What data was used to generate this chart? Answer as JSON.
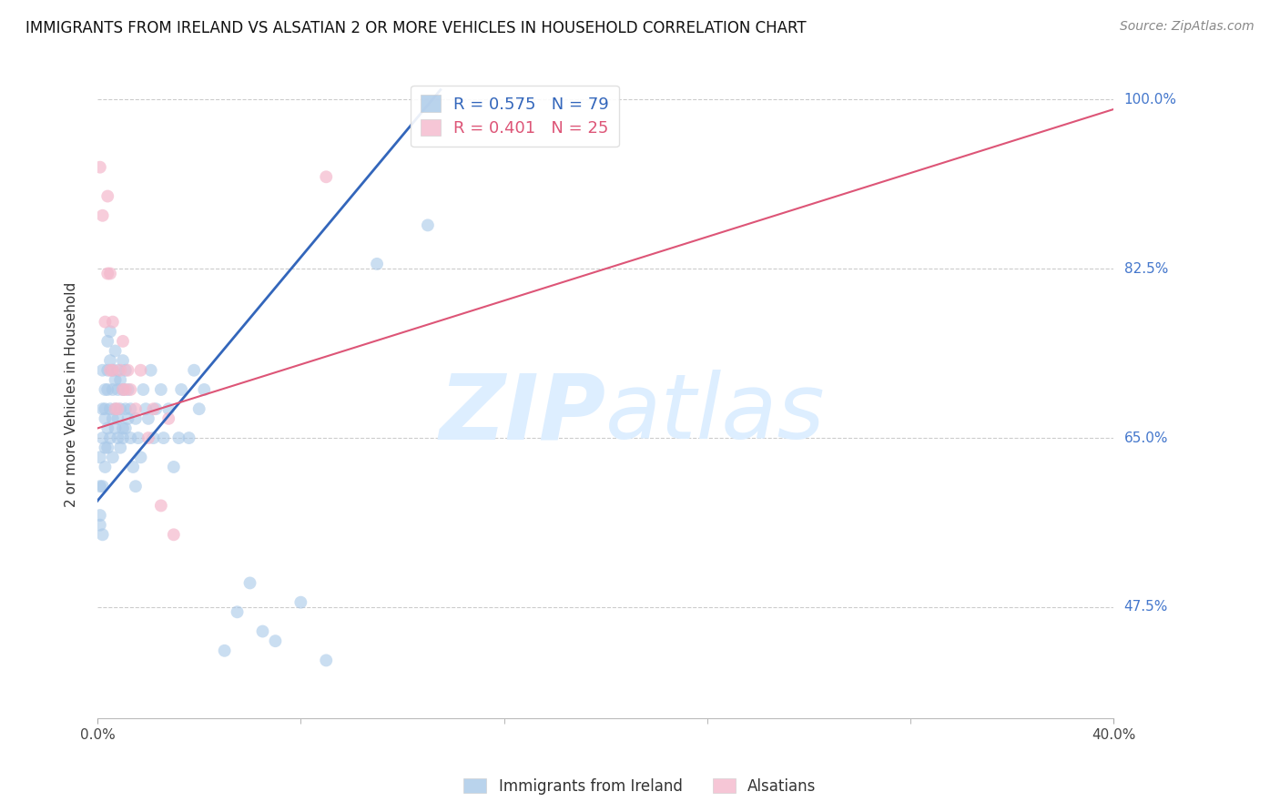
{
  "title": "IMMIGRANTS FROM IRELAND VS ALSATIAN 2 OR MORE VEHICLES IN HOUSEHOLD CORRELATION CHART",
  "source": "Source: ZipAtlas.com",
  "ylabel": "2 or more Vehicles in Household",
  "ytick_labels": [
    "100.0%",
    "82.5%",
    "65.0%",
    "47.5%"
  ],
  "ytick_values": [
    1.0,
    0.825,
    0.65,
    0.475
  ],
  "xlim": [
    0.0,
    0.4
  ],
  "ylim": [
    0.36,
    1.03
  ],
  "legend_blue_r": "R = 0.575",
  "legend_blue_n": "N = 79",
  "legend_pink_r": "R = 0.401",
  "legend_pink_n": "N = 25",
  "legend_label_blue": "Immigrants from Ireland",
  "legend_label_pink": "Alsatians",
  "blue_color": "#a8c8e8",
  "pink_color": "#f4b8cc",
  "line_blue_color": "#3366bb",
  "line_pink_color": "#dd5577",
  "watermark_zip": "ZIP",
  "watermark_atlas": "atlas",
  "watermark_color": "#ddeeff",
  "blue_x": [
    0.001,
    0.001,
    0.001,
    0.001,
    0.002,
    0.002,
    0.002,
    0.002,
    0.002,
    0.003,
    0.003,
    0.003,
    0.003,
    0.003,
    0.004,
    0.004,
    0.004,
    0.004,
    0.004,
    0.005,
    0.005,
    0.005,
    0.005,
    0.006,
    0.006,
    0.006,
    0.006,
    0.007,
    0.007,
    0.007,
    0.007,
    0.008,
    0.008,
    0.008,
    0.008,
    0.009,
    0.009,
    0.009,
    0.01,
    0.01,
    0.01,
    0.01,
    0.011,
    0.011,
    0.011,
    0.012,
    0.012,
    0.013,
    0.013,
    0.014,
    0.015,
    0.015,
    0.016,
    0.017,
    0.018,
    0.019,
    0.02,
    0.021,
    0.022,
    0.023,
    0.025,
    0.026,
    0.028,
    0.03,
    0.032,
    0.033,
    0.036,
    0.038,
    0.04,
    0.042,
    0.05,
    0.055,
    0.06,
    0.065,
    0.07,
    0.08,
    0.09,
    0.11,
    0.13
  ],
  "blue_y": [
    0.57,
    0.6,
    0.63,
    0.56,
    0.68,
    0.65,
    0.72,
    0.6,
    0.55,
    0.67,
    0.7,
    0.64,
    0.68,
    0.62,
    0.72,
    0.75,
    0.66,
    0.7,
    0.64,
    0.73,
    0.68,
    0.76,
    0.65,
    0.7,
    0.67,
    0.72,
    0.63,
    0.68,
    0.71,
    0.74,
    0.66,
    0.65,
    0.7,
    0.72,
    0.67,
    0.68,
    0.64,
    0.71,
    0.66,
    0.7,
    0.73,
    0.65,
    0.68,
    0.72,
    0.66,
    0.7,
    0.67,
    0.65,
    0.68,
    0.62,
    0.6,
    0.67,
    0.65,
    0.63,
    0.7,
    0.68,
    0.67,
    0.72,
    0.65,
    0.68,
    0.7,
    0.65,
    0.68,
    0.62,
    0.65,
    0.7,
    0.65,
    0.72,
    0.68,
    0.7,
    0.43,
    0.47,
    0.5,
    0.45,
    0.44,
    0.48,
    0.42,
    0.83,
    0.87
  ],
  "pink_x": [
    0.001,
    0.002,
    0.003,
    0.004,
    0.004,
    0.005,
    0.005,
    0.006,
    0.006,
    0.007,
    0.008,
    0.009,
    0.01,
    0.01,
    0.011,
    0.012,
    0.013,
    0.015,
    0.017,
    0.02,
    0.022,
    0.025,
    0.028,
    0.03,
    0.09
  ],
  "pink_y": [
    0.93,
    0.88,
    0.77,
    0.9,
    0.82,
    0.72,
    0.82,
    0.72,
    0.77,
    0.68,
    0.68,
    0.72,
    0.7,
    0.75,
    0.7,
    0.72,
    0.7,
    0.68,
    0.72,
    0.65,
    0.68,
    0.58,
    0.67,
    0.55,
    0.92
  ],
  "blue_line_x": [
    0.0,
    0.135
  ],
  "blue_line_y": [
    0.585,
    1.01
  ],
  "pink_line_x": [
    0.0,
    0.4
  ],
  "pink_line_y": [
    0.66,
    0.99
  ],
  "grid_color": "#cccccc",
  "bg_color": "#ffffff",
  "xtick_positions": [
    0.0,
    0.4
  ],
  "xtick_labels": [
    "0.0%",
    "40.0%"
  ]
}
